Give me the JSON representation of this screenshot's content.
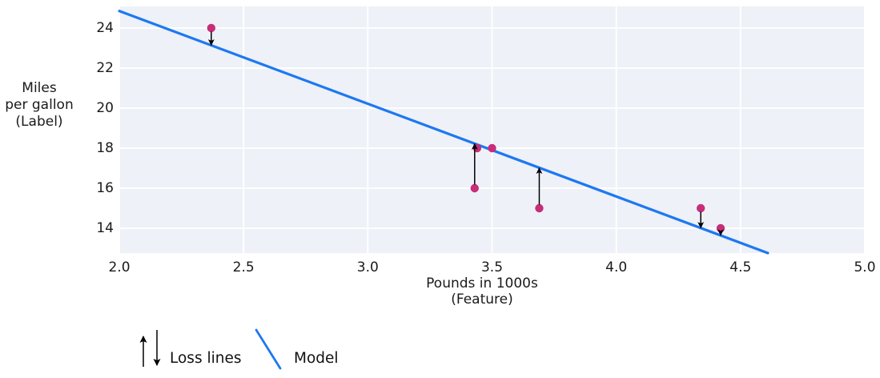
{
  "chart_data": {
    "type": "scatter",
    "xlabel_lines": [
      "Pounds in 1000s",
      "(Feature)"
    ],
    "ylabel_lines": [
      "Miles",
      "per gallon",
      "(Label)"
    ],
    "xlim": [
      2.0,
      5.0
    ],
    "ylim": [
      12.76,
      25.08
    ],
    "xtick_values": [
      2.0,
      2.5,
      3.0,
      3.5,
      4.0,
      4.5,
      5.0
    ],
    "xtick_labels": [
      "2.0",
      "2.5",
      "3.0",
      "3.5",
      "4.0",
      "4.5",
      "5.0"
    ],
    "ytick_values": [
      14,
      16,
      18,
      20,
      22,
      24
    ],
    "ytick_labels": [
      "14",
      "16",
      "18",
      "20",
      "22",
      "24"
    ],
    "grid": true,
    "points": [
      {
        "x": 2.37,
        "y": 24,
        "loss_line": true
      },
      {
        "x": 3.43,
        "y": 16,
        "loss_line": true
      },
      {
        "x": 3.44,
        "y": 18,
        "loss_line": false
      },
      {
        "x": 3.5,
        "y": 18,
        "loss_line": false
      },
      {
        "x": 3.69,
        "y": 15,
        "loss_line": true
      },
      {
        "x": 4.34,
        "y": 15,
        "loss_line": true
      },
      {
        "x": 4.42,
        "y": 14,
        "loss_line": true
      }
    ],
    "model_line": {
      "x1": 2.0,
      "y1": 24.85,
      "x2": 4.61,
      "y2": 12.76
    },
    "legend": [
      {
        "symbol": "loss-arrows",
        "label": "Loss lines"
      },
      {
        "symbol": "model-line",
        "label": "Model"
      }
    ],
    "legend_position": "bottom-left",
    "colors": {
      "point": "#c72d78",
      "model_line": "#1d78f2",
      "loss_arrow": "#000000",
      "plot_background": "#eef1f7",
      "grid": "#ffffff",
      "text": "#1a1a1a"
    }
  }
}
